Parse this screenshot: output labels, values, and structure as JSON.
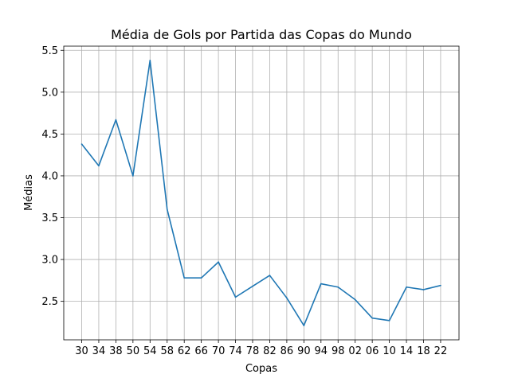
{
  "chart_data": {
    "type": "line",
    "title": "Média de Gols por Partida das Copas do Mundo",
    "xlabel": "Copas",
    "ylabel": "Médias",
    "categories": [
      "30",
      "34",
      "38",
      "50",
      "54",
      "58",
      "62",
      "66",
      "70",
      "74",
      "78",
      "82",
      "86",
      "90",
      "94",
      "98",
      "02",
      "06",
      "10",
      "14",
      "18",
      "22"
    ],
    "series": [
      {
        "values": [
          4.38,
          4.12,
          4.67,
          4.0,
          5.38,
          3.6,
          2.78,
          2.78,
          2.97,
          2.55,
          2.68,
          2.81,
          2.54,
          2.21,
          2.71,
          2.67,
          2.52,
          2.3,
          2.27,
          2.67,
          2.64,
          2.69
        ],
        "color": "#1f77b4"
      }
    ],
    "ylim": [
      2.04,
      5.55
    ],
    "yticks": [
      "2.5",
      "3.0",
      "3.5",
      "4.0",
      "4.5",
      "5.0",
      "5.5"
    ],
    "grid": true
  }
}
